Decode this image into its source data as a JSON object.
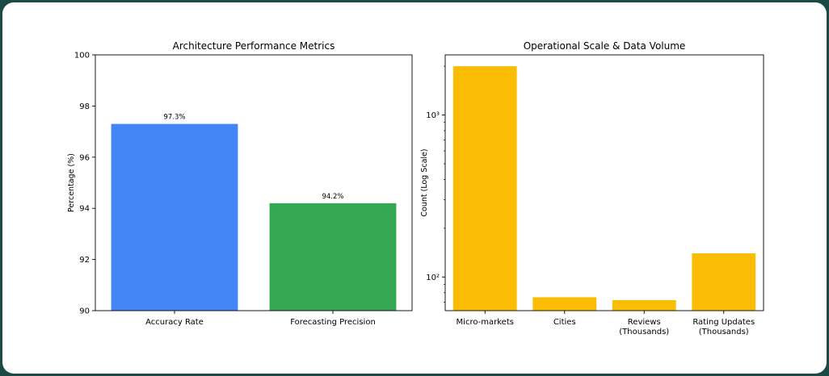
{
  "chart_data": [
    {
      "type": "bar",
      "title": "Architecture Performance Metrics",
      "xlabel": "",
      "ylabel": "Percentage (%)",
      "categories": [
        "Accuracy Rate",
        "Forecasting Precision"
      ],
      "values": [
        97.3,
        94.2
      ],
      "data_labels": [
        "97.3%",
        "94.2%"
      ],
      "colors": [
        "#4285F4",
        "#34A853"
      ],
      "ylim": [
        90,
        100
      ],
      "yticks": [
        90,
        92,
        94,
        96,
        98,
        100
      ],
      "ytick_labels": [
        "90",
        "92",
        "94",
        "96",
        "98",
        "100"
      ],
      "yscale": "linear",
      "grid": false
    },
    {
      "type": "bar",
      "title": "Operational Scale & Data Volume",
      "xlabel": "",
      "ylabel": "Count (Log Scale)",
      "categories": [
        "Micro-markets",
        "Cities",
        "Reviews\n(Thousands)",
        "Rating Updates\n(Thousands)"
      ],
      "values": [
        2000,
        75,
        72,
        140
      ],
      "colors": [
        "#FBBC04",
        "#FBBC04",
        "#FBBC04",
        "#FBBC04"
      ],
      "ylim": [
        62,
        2350
      ],
      "yticks": [
        100,
        1000
      ],
      "ytick_labels": [
        "10²",
        "10³"
      ],
      "yscale": "log",
      "grid": false
    }
  ]
}
